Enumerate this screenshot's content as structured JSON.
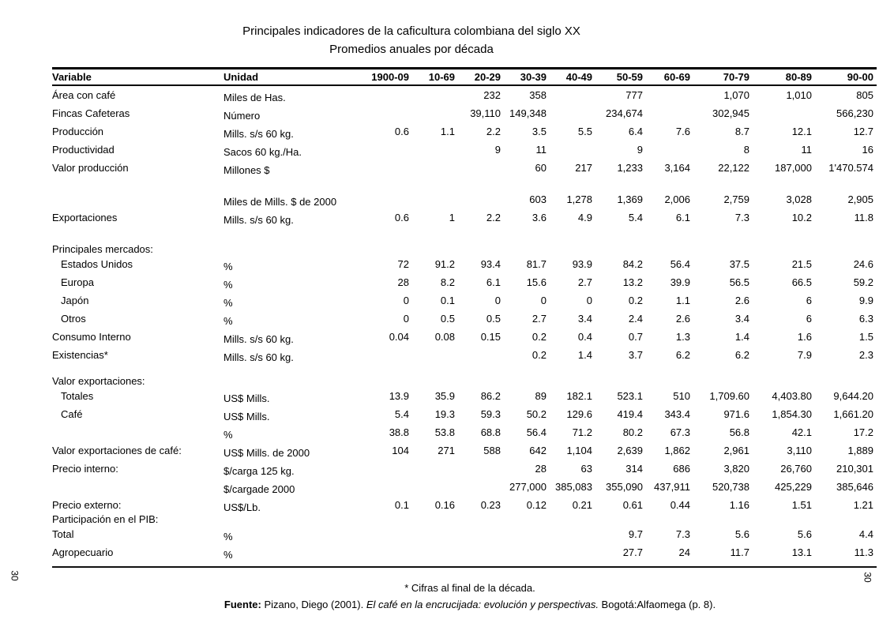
{
  "page": {
    "title": "Principales indicadores de la caficultura colombiana del siglo XX",
    "subtitle": "Promedios anuales por década",
    "footnote": "* Cifras al final de la década.",
    "source_label": "Fuente:",
    "source_pre": " Pizano, Diego (2001). ",
    "source_italic": "El café en la encrucijada: evolución y perspectivas.",
    "source_post": " Bogotá:Alfaomega (p. 8).",
    "page_number_left": "30",
    "page_number_right": "30"
  },
  "table": {
    "columns": [
      "Variable",
      "Unidad",
      "1900-09",
      "10-69",
      "20-29",
      "30-39",
      "40-49",
      "50-59",
      "60-69",
      "70-79",
      "80-89",
      "90-00"
    ],
    "rows": [
      {
        "type": "data",
        "label": "Área con café",
        "indent": false,
        "unit": "Miles de Has.",
        "values": [
          "",
          "",
          "232",
          "358",
          "",
          "777",
          "",
          "1,070",
          "1,010",
          "805"
        ]
      },
      {
        "type": "data",
        "label": "Fincas Cafeteras",
        "indent": false,
        "unit": "Número",
        "values": [
          "",
          "",
          "39,110",
          "149,348",
          "",
          "234,674",
          "",
          "302,945",
          "",
          "566,230"
        ]
      },
      {
        "type": "data",
        "label": "Producción",
        "indent": false,
        "unit": "Mills. s/s 60 kg.",
        "values": [
          "0.6",
          "1.1",
          "2.2",
          "3.5",
          "5.5",
          "6.4",
          "7.6",
          "8.7",
          "12.1",
          "12.7"
        ]
      },
      {
        "type": "data",
        "label": "Productividad",
        "indent": false,
        "unit": "Sacos 60 kg./Ha.",
        "values": [
          "",
          "",
          "9",
          "11",
          "",
          "9",
          "",
          "8",
          "11",
          "16"
        ]
      },
      {
        "type": "data",
        "label": "Valor producción",
        "indent": false,
        "unit": "Millones $",
        "values": [
          "",
          "",
          "",
          "60",
          "217",
          "1,233",
          "3,164",
          "22,122",
          "187,000",
          "1'470.574"
        ]
      },
      {
        "type": "spacer",
        "h": 17
      },
      {
        "type": "data",
        "label": "",
        "indent": false,
        "unit": "Miles de Mills. $ de 2000",
        "values": [
          "",
          "",
          "",
          "603",
          "1,278",
          "1,369",
          "2,006",
          "2,759",
          "3,028",
          "2,905"
        ]
      },
      {
        "type": "data",
        "label": "Exportaciones",
        "indent": false,
        "unit": "Mills. s/s 60 kg.",
        "values": [
          "0.6",
          "1",
          "2.2",
          "3.6",
          "4.9",
          "5.4",
          "6.1",
          "7.3",
          "10.2",
          "11.8"
        ]
      },
      {
        "type": "spacer",
        "h": 22
      },
      {
        "type": "group",
        "label": "Principales mercados:"
      },
      {
        "type": "data",
        "label": "Estados Unidos",
        "indent": true,
        "unit": "%",
        "values": [
          "72",
          "91.2",
          "93.4",
          "81.7",
          "93.9",
          "84.2",
          "56.4",
          "37.5",
          "21.5",
          "24.6"
        ]
      },
      {
        "type": "data",
        "label": "Europa",
        "indent": true,
        "unit": "%",
        "values": [
          "28",
          "8.2",
          "6.1",
          "15.6",
          "2.7",
          "13.2",
          "39.9",
          "56.5",
          "66.5",
          "59.2"
        ]
      },
      {
        "type": "data",
        "label": "Japón",
        "indent": true,
        "unit": "%",
        "values": [
          "0",
          "0.1",
          "0",
          "0",
          "0",
          "0.2",
          "1.1",
          "2.6",
          "6",
          "9.9"
        ]
      },
      {
        "type": "data",
        "label": "Otros",
        "indent": true,
        "unit": "%",
        "values": [
          "0",
          "0.5",
          "0.5",
          "2.7",
          "3.4",
          "2.4",
          "2.6",
          "3.4",
          "6",
          "6.3"
        ]
      },
      {
        "type": "data",
        "label": "Consumo Interno",
        "indent": false,
        "unit": "Mills. s/s 60 kg.",
        "values": [
          "0.04",
          "0.08",
          "0.15",
          "0.2",
          "0.4",
          "0.7",
          "1.3",
          "1.4",
          "1.6",
          "1.5"
        ]
      },
      {
        "type": "data",
        "label": "Existencias*",
        "indent": false,
        "unit": "Mills. s/s 60 kg.",
        "values": [
          "",
          "",
          "",
          "0.2",
          "1.4",
          "3.7",
          "6.2",
          "6.2",
          "7.9",
          "2.3"
        ]
      },
      {
        "type": "spacer",
        "h": 15
      },
      {
        "type": "group",
        "label": "Valor exportaciones:"
      },
      {
        "type": "data",
        "label": "Totales",
        "indent": true,
        "unit": "US$ Mills.",
        "values": [
          "13.9",
          "35.9",
          "86.2",
          "89",
          "182.1",
          "523.1",
          "510",
          "1,709.60",
          "4,403.80",
          "9,644.20"
        ]
      },
      {
        "type": "data",
        "label": "Café",
        "indent": true,
        "unit": "US$ Mills.",
        "values": [
          "5.4",
          "19.3",
          "59.3",
          "50.2",
          "129.6",
          "419.4",
          "343.4",
          "971.6",
          "1,854.30",
          "1,661.20"
        ]
      },
      {
        "type": "data",
        "label": "",
        "indent": false,
        "unit": "%",
        "values": [
          "38.8",
          "53.8",
          "68.8",
          "56.4",
          "71.2",
          "80.2",
          "67.3",
          "56.8",
          "42.1",
          "17.2"
        ]
      },
      {
        "type": "data",
        "label": "Valor exportaciones de café:",
        "indent": false,
        "unit": "US$ Mills. de 2000",
        "values": [
          "104",
          "271",
          "588",
          "642",
          "1,104",
          "2,639",
          "1,862",
          "2,961",
          "3,110",
          "1,889"
        ]
      },
      {
        "type": "data",
        "label": "Precio interno:",
        "indent": false,
        "unit": "$/carga 125 kg.",
        "values": [
          "",
          "",
          "",
          "28",
          "63",
          "314",
          "686",
          "3,820",
          "26,760",
          "210,301"
        ]
      },
      {
        "type": "data",
        "label": "",
        "indent": false,
        "unit": "$/cargade 2000",
        "values": [
          "",
          "",
          "",
          "277,000",
          "385,083",
          "355,090",
          "437,911",
          "520,738",
          "425,229",
          "385,646"
        ]
      },
      {
        "type": "data",
        "label": "Precio externo:",
        "indent": false,
        "unit": "US$/Lb.",
        "values": [
          "0.1",
          "0.16",
          "0.23",
          "0.12",
          "0.21",
          "0.61",
          "0.44",
          "1.16",
          "1.51",
          "1.21"
        ]
      },
      {
        "type": "group",
        "label": "Participación en el PIB:"
      },
      {
        "type": "data",
        "label": "Total",
        "indent": false,
        "unit": "%",
        "values": [
          "",
          "",
          "",
          "",
          "",
          "9.7",
          "7.3",
          "5.6",
          "5.6",
          "4.4"
        ]
      },
      {
        "type": "data",
        "label": "Agropecuario",
        "indent": false,
        "unit": "%",
        "values": [
          "",
          "",
          "",
          "",
          "",
          "27.7",
          "24",
          "11.7",
          "13.1",
          "11.3"
        ]
      }
    ]
  }
}
